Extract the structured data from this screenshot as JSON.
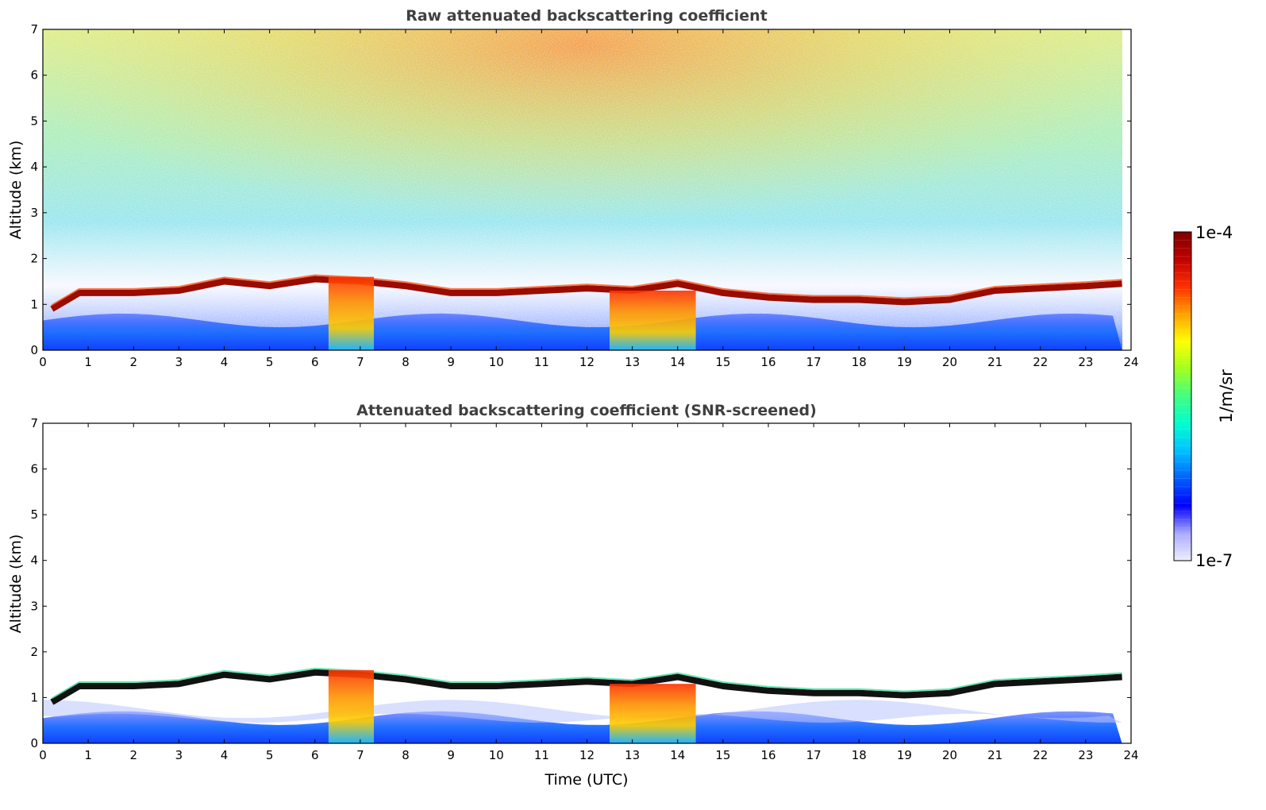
{
  "chart_data": {
    "colorbar": {
      "label": "1/m/sr",
      "min_label": "1e-7",
      "max_label": "1e-4",
      "colormap": "jet",
      "colors": [
        "#eeeeff",
        "#aaaaff",
        "#0000ff",
        "#0060ff",
        "#00c0ff",
        "#00ffd0",
        "#40ff80",
        "#a0ff20",
        "#ffff00",
        "#ffa000",
        "#ff3000",
        "#c00000",
        "#800000"
      ]
    },
    "panels": [
      {
        "type": "heatmap",
        "title": "Raw attenuated backscattering coefficient",
        "ylabel": "Altitude (km)",
        "xlabel": "",
        "xlim": [
          0,
          24
        ],
        "ylim": [
          0,
          7
        ],
        "xticks": [
          "0",
          "1",
          "2",
          "3",
          "4",
          "5",
          "6",
          "7",
          "8",
          "9",
          "10",
          "11",
          "12",
          "13",
          "14",
          "15",
          "16",
          "17",
          "18",
          "19",
          "20",
          "21",
          "22",
          "23",
          "24"
        ],
        "yticks": [
          "0",
          "1",
          "2",
          "3",
          "4",
          "5",
          "6",
          "7"
        ]
      },
      {
        "type": "heatmap",
        "title": "Attenuated backscattering coefficient (SNR-screened)",
        "ylabel": "Altitude (km)",
        "xlabel": "Time (UTC)",
        "xlim": [
          0,
          24
        ],
        "ylim": [
          0,
          7
        ],
        "xticks": [
          "0",
          "1",
          "2",
          "3",
          "4",
          "5",
          "6",
          "7",
          "8",
          "9",
          "10",
          "11",
          "12",
          "13",
          "14",
          "15",
          "16",
          "17",
          "18",
          "19",
          "20",
          "21",
          "22",
          "23",
          "24"
        ],
        "yticks": [
          "0",
          "1",
          "2",
          "3",
          "4",
          "5",
          "6",
          "7"
        ]
      }
    ],
    "cloud_base_km": {
      "time_utc": [
        0.2,
        0.8,
        2,
        3,
        4,
        5,
        6,
        7,
        8,
        9,
        10,
        11,
        12,
        13,
        14,
        15,
        16,
        17,
        18,
        19,
        20,
        21,
        22,
        23,
        23.8
      ],
      "altitude": [
        0.9,
        1.25,
        1.25,
        1.3,
        1.5,
        1.4,
        1.55,
        1.5,
        1.4,
        1.25,
        1.25,
        1.3,
        1.35,
        1.3,
        1.45,
        1.25,
        1.15,
        1.1,
        1.1,
        1.05,
        1.1,
        1.3,
        1.35,
        1.4,
        1.45
      ]
    },
    "deep_signal_events": [
      {
        "start": 6.3,
        "end": 7.3,
        "top_km": 1.6
      },
      {
        "start": 12.5,
        "end": 14.4,
        "top_km": 1.3
      }
    ]
  }
}
